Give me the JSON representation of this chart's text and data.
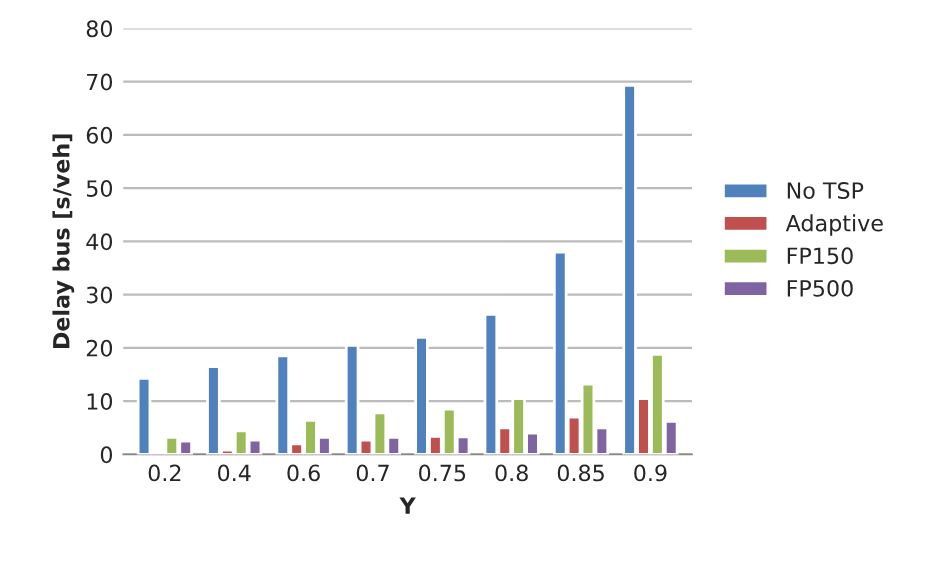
{
  "chart_data": {
    "type": "bar",
    "xlabel": "Y",
    "ylabel": "Delay bus [s/veh]",
    "categories": [
      "0.2",
      "0.4",
      "0.6",
      "0.7",
      "0.75",
      "0.8",
      "0.85",
      "0.9"
    ],
    "series": [
      {
        "name": "No TSP",
        "color": "#4f81bd",
        "values": [
          14.3,
          16.5,
          18.5,
          20.5,
          22,
          26.3,
          38,
          69.3
        ]
      },
      {
        "name": "Adaptive",
        "color": "#c0504d",
        "values": [
          0.5,
          0.8,
          2,
          2.7,
          3.4,
          5,
          7,
          10.5
        ]
      },
      {
        "name": "FP150",
        "color": "#9bbb59",
        "values": [
          3.2,
          4.4,
          6.4,
          7.8,
          8.5,
          10.5,
          13.2,
          18.8
        ]
      },
      {
        "name": "FP500",
        "color": "#8064a2",
        "values": [
          2.5,
          2.7,
          3.2,
          3.2,
          3.3,
          4,
          5,
          6.2
        ]
      }
    ],
    "ylim": [
      0,
      80
    ],
    "yticks": [
      0,
      10,
      20,
      30,
      40,
      50,
      60,
      70,
      80
    ],
    "grid": "y",
    "legend": "right"
  }
}
